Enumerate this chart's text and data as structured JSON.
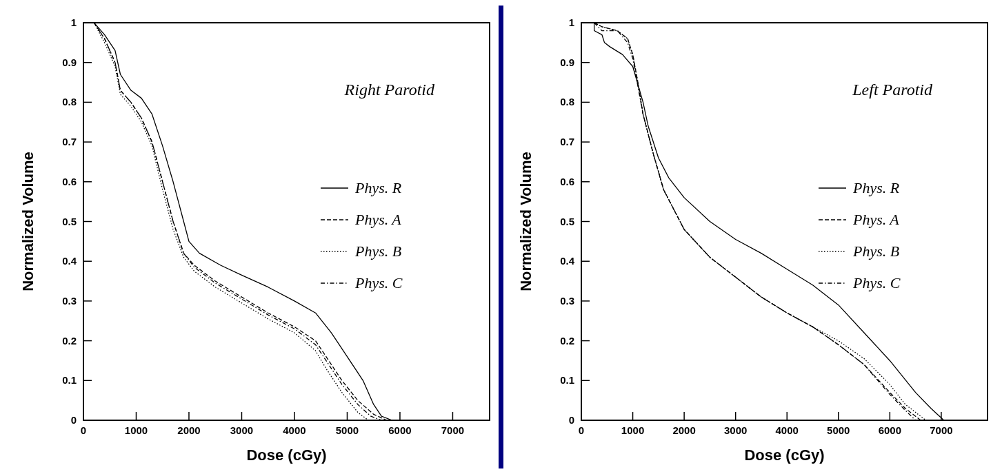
{
  "chart_data": [
    {
      "type": "line",
      "xlabel": "Dose (cGy)",
      "ylabel": "Normalized Volume",
      "annotations": [
        "Right Parotid"
      ],
      "xlim": [
        0,
        7700
      ],
      "ylim": [
        0,
        1
      ],
      "xticks": [
        0,
        1000,
        2000,
        3000,
        4000,
        5000,
        6000,
        7000
      ],
      "yticks": [
        0,
        0.1,
        0.2,
        0.3,
        0.4,
        0.5,
        0.6,
        0.7,
        0.8,
        0.9,
        1
      ],
      "grid": false,
      "legend": "right",
      "marker": "none",
      "series": [
        {
          "name": "Phys. R",
          "color": "#000000",
          "line_style": "solid",
          "x": [
            200,
            400,
            600,
            700,
            900,
            1100,
            1300,
            1500,
            1700,
            1900,
            2000,
            2200,
            2600,
            3000,
            3500,
            4000,
            4400,
            4700,
            5000,
            5300,
            5500,
            5650,
            5850
          ],
          "values": [
            1,
            0.97,
            0.93,
            0.87,
            0.83,
            0.81,
            0.77,
            0.69,
            0.6,
            0.5,
            0.45,
            0.42,
            0.39,
            0.365,
            0.335,
            0.3,
            0.27,
            0.22,
            0.16,
            0.1,
            0.04,
            0.01,
            0
          ]
        },
        {
          "name": "Phys. A",
          "color": "#000000",
          "line_style": "dashed",
          "x": [
            200,
            400,
            600,
            700,
            900,
            1100,
            1300,
            1500,
            1700,
            1900,
            2100,
            2500,
            3000,
            3500,
            4000,
            4400,
            4600,
            4900,
            5200,
            5500,
            5750
          ],
          "values": [
            1,
            0.96,
            0.9,
            0.83,
            0.8,
            0.76,
            0.7,
            0.6,
            0.5,
            0.42,
            0.39,
            0.35,
            0.31,
            0.27,
            0.235,
            0.2,
            0.16,
            0.1,
            0.05,
            0.015,
            0
          ]
        },
        {
          "name": "Phys. B",
          "color": "#000000",
          "line_style": "dotted",
          "x": [
            200,
            400,
            600,
            700,
            900,
            1100,
            1300,
            1500,
            1700,
            1900,
            2100,
            2500,
            3000,
            3500,
            4000,
            4400,
            4600,
            4900,
            5200,
            5400
          ],
          "values": [
            1,
            0.95,
            0.89,
            0.82,
            0.79,
            0.75,
            0.69,
            0.58,
            0.48,
            0.41,
            0.375,
            0.335,
            0.295,
            0.255,
            0.22,
            0.175,
            0.13,
            0.07,
            0.02,
            0
          ]
        },
        {
          "name": "Phys. C",
          "color": "#000000",
          "line_style": "dashdot",
          "x": [
            200,
            400,
            600,
            700,
            900,
            1100,
            1300,
            1500,
            1700,
            1900,
            2100,
            2500,
            3000,
            3500,
            4000,
            4400,
            4600,
            4900,
            5200,
            5450,
            5650
          ],
          "values": [
            1,
            0.96,
            0.9,
            0.83,
            0.8,
            0.76,
            0.7,
            0.6,
            0.5,
            0.42,
            0.385,
            0.345,
            0.305,
            0.265,
            0.23,
            0.19,
            0.15,
            0.09,
            0.04,
            0.01,
            0
          ]
        }
      ]
    },
    {
      "type": "line",
      "xlabel": "Dose (cGy)",
      "ylabel": "Normalized Volume",
      "annotations": [
        "Left Parotid"
      ],
      "xlim": [
        0,
        7900
      ],
      "ylim": [
        0,
        1
      ],
      "xticks": [
        0,
        1000,
        2000,
        3000,
        4000,
        5000,
        6000,
        7000
      ],
      "yticks": [
        0,
        0.1,
        0.2,
        0.3,
        0.4,
        0.5,
        0.6,
        0.7,
        0.8,
        0.9,
        1
      ],
      "grid": false,
      "legend": "right",
      "marker": "none",
      "series": [
        {
          "name": "Phys. R",
          "color": "#000000",
          "line_style": "solid",
          "x": [
            250,
            250,
            400,
            450,
            550,
            800,
            1000,
            1200,
            1300,
            1500,
            1700,
            2000,
            2500,
            3000,
            3500,
            4000,
            4500,
            5000,
            5500,
            6000,
            6500,
            6800,
            7050
          ],
          "values": [
            1,
            0.98,
            0.97,
            0.95,
            0.94,
            0.92,
            0.89,
            0.8,
            0.74,
            0.66,
            0.61,
            0.56,
            0.5,
            0.455,
            0.42,
            0.38,
            0.34,
            0.29,
            0.22,
            0.15,
            0.07,
            0.03,
            0
          ]
        },
        {
          "name": "Phys. A",
          "color": "#000000",
          "line_style": "dashed",
          "x": [
            250,
            400,
            700,
            900,
            1000,
            1100,
            1200,
            1400,
            1600,
            2000,
            2500,
            3000,
            3500,
            4000,
            4500,
            5000,
            5500,
            6000,
            6300,
            6600
          ],
          "values": [
            1,
            0.99,
            0.98,
            0.96,
            0.92,
            0.85,
            0.77,
            0.67,
            0.58,
            0.48,
            0.41,
            0.36,
            0.31,
            0.27,
            0.235,
            0.19,
            0.14,
            0.07,
            0.03,
            0
          ]
        },
        {
          "name": "Phys. B",
          "color": "#000000",
          "line_style": "dotted",
          "x": [
            250,
            400,
            700,
            900,
            1000,
            1100,
            1200,
            1400,
            1600,
            2000,
            2500,
            3000,
            3500,
            4000,
            4500,
            5000,
            5500,
            6000,
            6300,
            6600,
            6700
          ],
          "values": [
            1,
            0.99,
            0.98,
            0.96,
            0.92,
            0.85,
            0.77,
            0.67,
            0.58,
            0.48,
            0.41,
            0.36,
            0.31,
            0.27,
            0.235,
            0.2,
            0.155,
            0.09,
            0.04,
            0.01,
            0
          ]
        },
        {
          "name": "Phys. C",
          "color": "#000000",
          "line_style": "dashdot",
          "x": [
            250,
            400,
            700,
            900,
            1000,
            1100,
            1200,
            1400,
            1600,
            2000,
            2500,
            3000,
            3500,
            4000,
            4500,
            5000,
            5500,
            6000,
            6300,
            6500
          ],
          "values": [
            1,
            0.98,
            0.98,
            0.95,
            0.91,
            0.84,
            0.77,
            0.67,
            0.58,
            0.48,
            0.41,
            0.36,
            0.31,
            0.27,
            0.235,
            0.19,
            0.14,
            0.065,
            0.025,
            0
          ]
        }
      ]
    }
  ]
}
